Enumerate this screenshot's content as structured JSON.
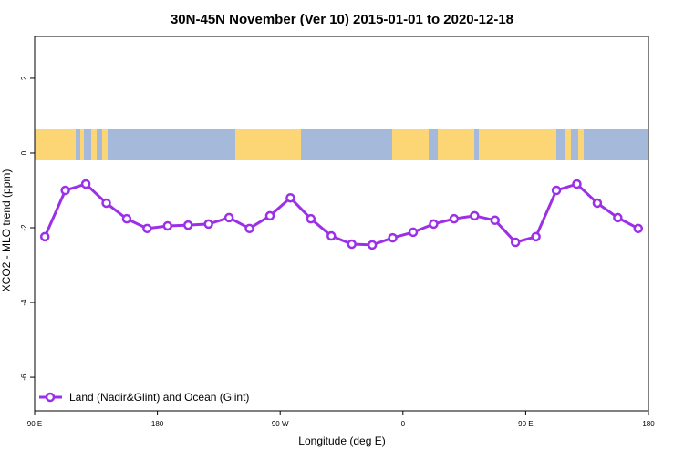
{
  "chart_data": {
    "type": "line",
    "title": "30N-45N November (Ver 10)   2015-01-01 to 2020-12-18",
    "x_label": "Longitude (deg E)",
    "y_label": "XCO2 - MLO trend (ppm)",
    "x": [
      97.5,
      112.5,
      127.5,
      142.5,
      157.5,
      172.5,
      187.5,
      202.5,
      217.5,
      232.5,
      247.5,
      262.5,
      277.5,
      292.5,
      307.5,
      322.5,
      337.5,
      352.5,
      367.5,
      382.5,
      397.5,
      412.5,
      427.5,
      442.5,
      457.5,
      472.5,
      487.5,
      502.5,
      517.5,
      532.5
    ],
    "series": [
      {
        "name": "Land (Nadir&Glint) and Ocean (Glint)",
        "color": "#9b30e8",
        "values": [
          -2.24,
          -1.0,
          -0.83,
          -1.34,
          -1.76,
          -2.02,
          -1.95,
          -1.93,
          -1.9,
          -1.73,
          -2.02,
          -1.68,
          -1.2,
          -1.76,
          -2.22,
          -2.44,
          -2.46,
          -2.27,
          -2.12,
          -1.9,
          -1.76,
          -1.68,
          -1.8,
          -2.39,
          -2.24,
          -1.0,
          -0.83,
          -1.34,
          -1.73,
          -2.02
        ]
      }
    ],
    "xlim": [
      90,
      540
    ],
    "xticks": [
      {
        "value": 90,
        "label": "90 E"
      },
      {
        "value": 180,
        "label": "180"
      },
      {
        "value": 270,
        "label": "90 W"
      },
      {
        "value": 360,
        "label": "0"
      },
      {
        "value": 450,
        "label": "90 E"
      },
      {
        "value": 540,
        "label": "180"
      }
    ],
    "ylim": [
      -6.9,
      3.12
    ],
    "yticks": [
      -6,
      -4,
      -2,
      0,
      2
    ],
    "legend": "bottom-left"
  }
}
